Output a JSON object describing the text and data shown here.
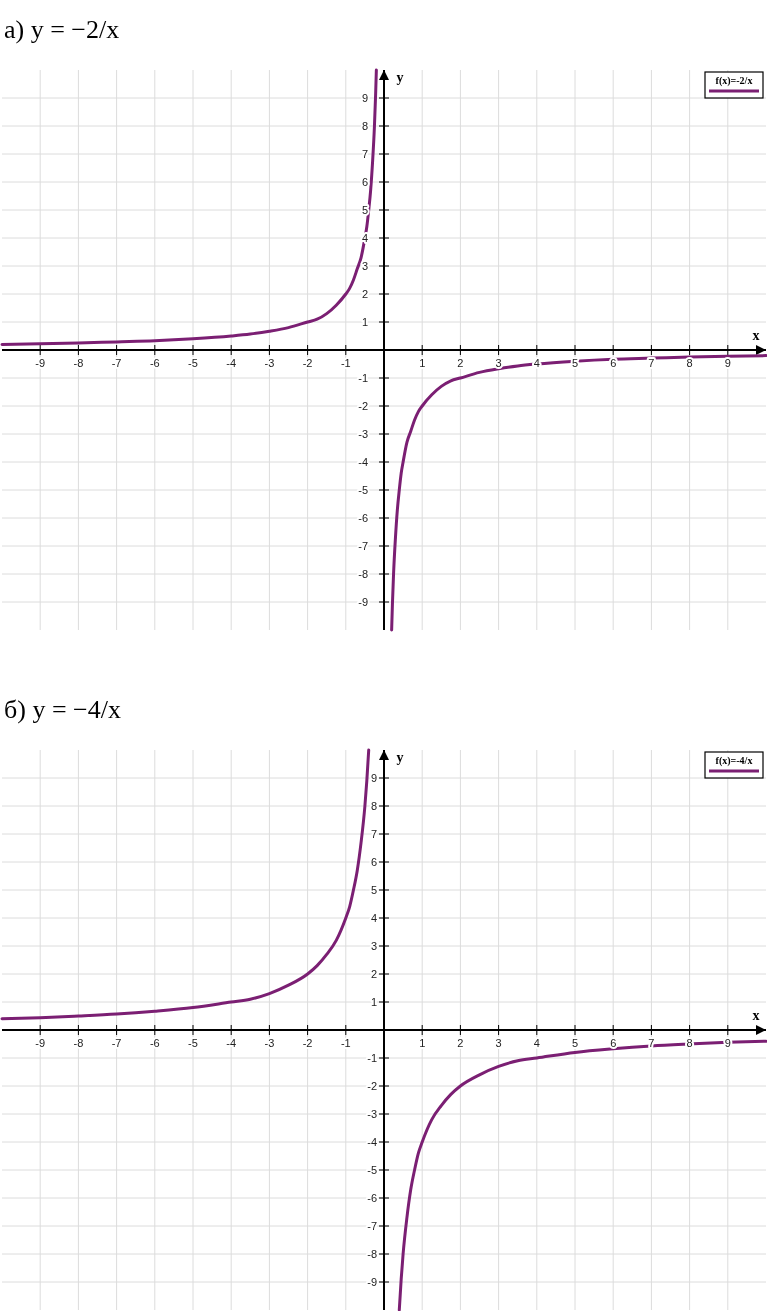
{
  "chart_data": [
    {
      "type": "line",
      "title": "а) y = −2/x",
      "xlabel": "x",
      "ylabel": "y",
      "xlim": [
        -10,
        10
      ],
      "ylim": [
        -10,
        10
      ],
      "xticks": [
        -9,
        -8,
        -7,
        -6,
        -5,
        -4,
        -3,
        -2,
        -1,
        1,
        2,
        3,
        4,
        5,
        6,
        7,
        8,
        9
      ],
      "yticks": [
        -9,
        -8,
        -7,
        -6,
        -5,
        -4,
        -3,
        -2,
        -1,
        1,
        2,
        3,
        4,
        5,
        6,
        7,
        8,
        9
      ],
      "grid": true,
      "legend": "top right",
      "series": [
        {
          "name": "f(x)=-2/x",
          "color": "#7b1f73",
          "x": [
            -10,
            -9,
            -8,
            -7,
            -6,
            -5,
            -4,
            -3.5,
            -3,
            -2.5,
            -2,
            -1.75,
            -1.5,
            -1.25,
            -1,
            -0.9,
            -0.8,
            -0.7,
            -0.6,
            -0.5,
            -0.45,
            -0.4,
            -0.35,
            -0.3,
            -0.25,
            -0.22,
            -0.2,
            0,
            0.2,
            0.22,
            0.25,
            0.3,
            0.35,
            0.4,
            0.45,
            0.5,
            0.6,
            0.7,
            0.8,
            0.9,
            1,
            1.25,
            1.5,
            1.75,
            2,
            2.5,
            3,
            3.5,
            4,
            5,
            6,
            7,
            8,
            9,
            10
          ],
          "values": [
            0.2,
            0.22,
            0.25,
            0.29,
            0.33,
            0.4,
            0.5,
            0.57,
            0.67,
            0.8,
            1,
            1.1,
            1.3,
            1.6,
            2,
            2.2,
            2.5,
            2.9,
            3.3,
            4,
            4.4,
            5,
            5.7,
            6.7,
            8,
            9.1,
            10,
            null,
            -10,
            -9.1,
            -8,
            -6.7,
            -5.7,
            -5,
            -4.4,
            -4,
            -3.3,
            -2.9,
            -2.5,
            -2.2,
            -2,
            -1.6,
            -1.3,
            -1.1,
            -1,
            -0.8,
            -0.67,
            -0.57,
            -0.5,
            -0.4,
            -0.33,
            -0.29,
            -0.25,
            -0.22,
            -0.2
          ]
        }
      ]
    },
    {
      "type": "line",
      "title": "б) y = −4/x",
      "xlabel": "x",
      "ylabel": "y",
      "xlim": [
        -10,
        10
      ],
      "ylim": [
        -10,
        10
      ],
      "xticks": [
        -9,
        -8,
        -7,
        -6,
        -5,
        -4,
        -3,
        -2,
        -1,
        1,
        2,
        3,
        4,
        5,
        6,
        7,
        8,
        9
      ],
      "yticks": [
        -9,
        -8,
        -7,
        -6,
        -5,
        -4,
        -3,
        -2,
        -1,
        1,
        2,
        3,
        4,
        5,
        6,
        7,
        8,
        9
      ],
      "grid": true,
      "legend": "top right",
      "series": [
        {
          "name": "f(x)=-4/x",
          "color": "#7b1f73",
          "x": [
            -10,
            -9,
            -8,
            -7,
            -6,
            -5,
            -4,
            -3.5,
            -3,
            -2.5,
            -2,
            -1.75,
            -1.5,
            -1.25,
            -1,
            -0.9,
            -0.8,
            -0.7,
            -0.6,
            -0.5,
            -0.45,
            -0.4,
            0,
            0.4,
            0.45,
            0.5,
            0.6,
            0.7,
            0.8,
            0.9,
            1,
            1.25,
            1.5,
            1.75,
            2,
            2.5,
            3,
            3.5,
            4,
            5,
            6,
            7,
            8,
            9,
            10
          ],
          "values": [
            0.4,
            0.44,
            0.5,
            0.57,
            0.67,
            0.8,
            1,
            1.1,
            1.3,
            1.6,
            2,
            2.3,
            2.7,
            3.2,
            4,
            4.4,
            5,
            5.7,
            6.7,
            8,
            8.9,
            10,
            null,
            -10,
            -8.9,
            -8,
            -6.7,
            -5.7,
            -5,
            -4.4,
            -4,
            -3.2,
            -2.7,
            -2.3,
            -2,
            -1.6,
            -1.3,
            -1.1,
            -1,
            -0.8,
            -0.67,
            -0.57,
            -0.5,
            -0.44,
            -0.4
          ]
        }
      ]
    }
  ]
}
